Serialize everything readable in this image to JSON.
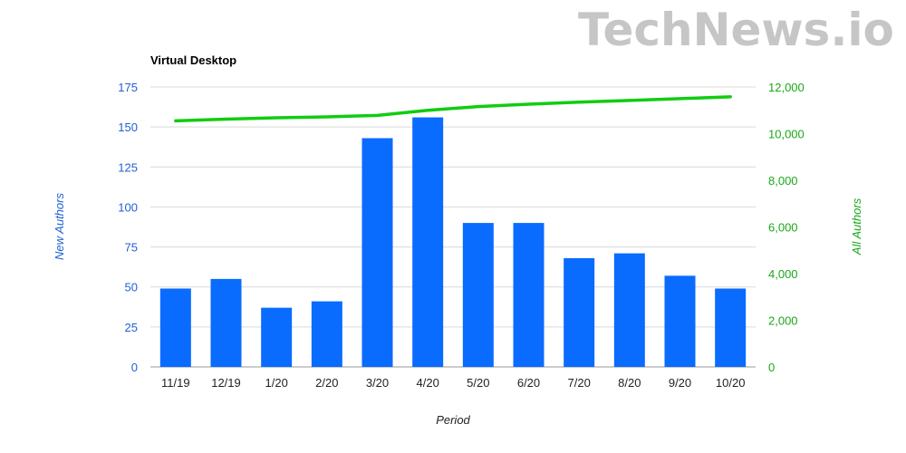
{
  "watermark": "TechNews.io",
  "colors": {
    "bar": "#0a6bff",
    "line": "#11cc11",
    "left_axis": "#1f5fd6",
    "right_axis": "#1aa81a",
    "grid": "#d9d9d9"
  },
  "chart_data": {
    "type": "bar",
    "title": "Virtual Desktop",
    "xlabel": "Period",
    "ylabel_left": "New Authors",
    "ylabel_right": "All Authors",
    "categories": [
      "11/19",
      "12/19",
      "1/20",
      "2/20",
      "3/20",
      "4/20",
      "5/20",
      "6/20",
      "7/20",
      "8/20",
      "9/20",
      "10/20"
    ],
    "series": [
      {
        "name": "New Authors",
        "type": "bar",
        "axis": "left",
        "values": [
          49,
          55,
          37,
          41,
          143,
          156,
          90,
          90,
          68,
          71,
          57,
          49
        ]
      },
      {
        "name": "All Authors",
        "type": "line",
        "axis": "right",
        "values": [
          10550,
          10620,
          10680,
          10720,
          10780,
          11000,
          11160,
          11260,
          11350,
          11420,
          11500,
          11580
        ]
      }
    ],
    "ylim_left": [
      0,
      175
    ],
    "yticks_left": [
      0,
      25,
      50,
      75,
      100,
      125,
      150,
      175
    ],
    "ylim_right": [
      0,
      12000
    ],
    "yticks_right": [
      "0",
      "2,000",
      "4,000",
      "6,000",
      "8,000",
      "10,000",
      "12,000"
    ],
    "yticks_right_values": [
      0,
      2000,
      4000,
      6000,
      8000,
      10000,
      12000
    ],
    "grid": true,
    "legend": "none"
  }
}
